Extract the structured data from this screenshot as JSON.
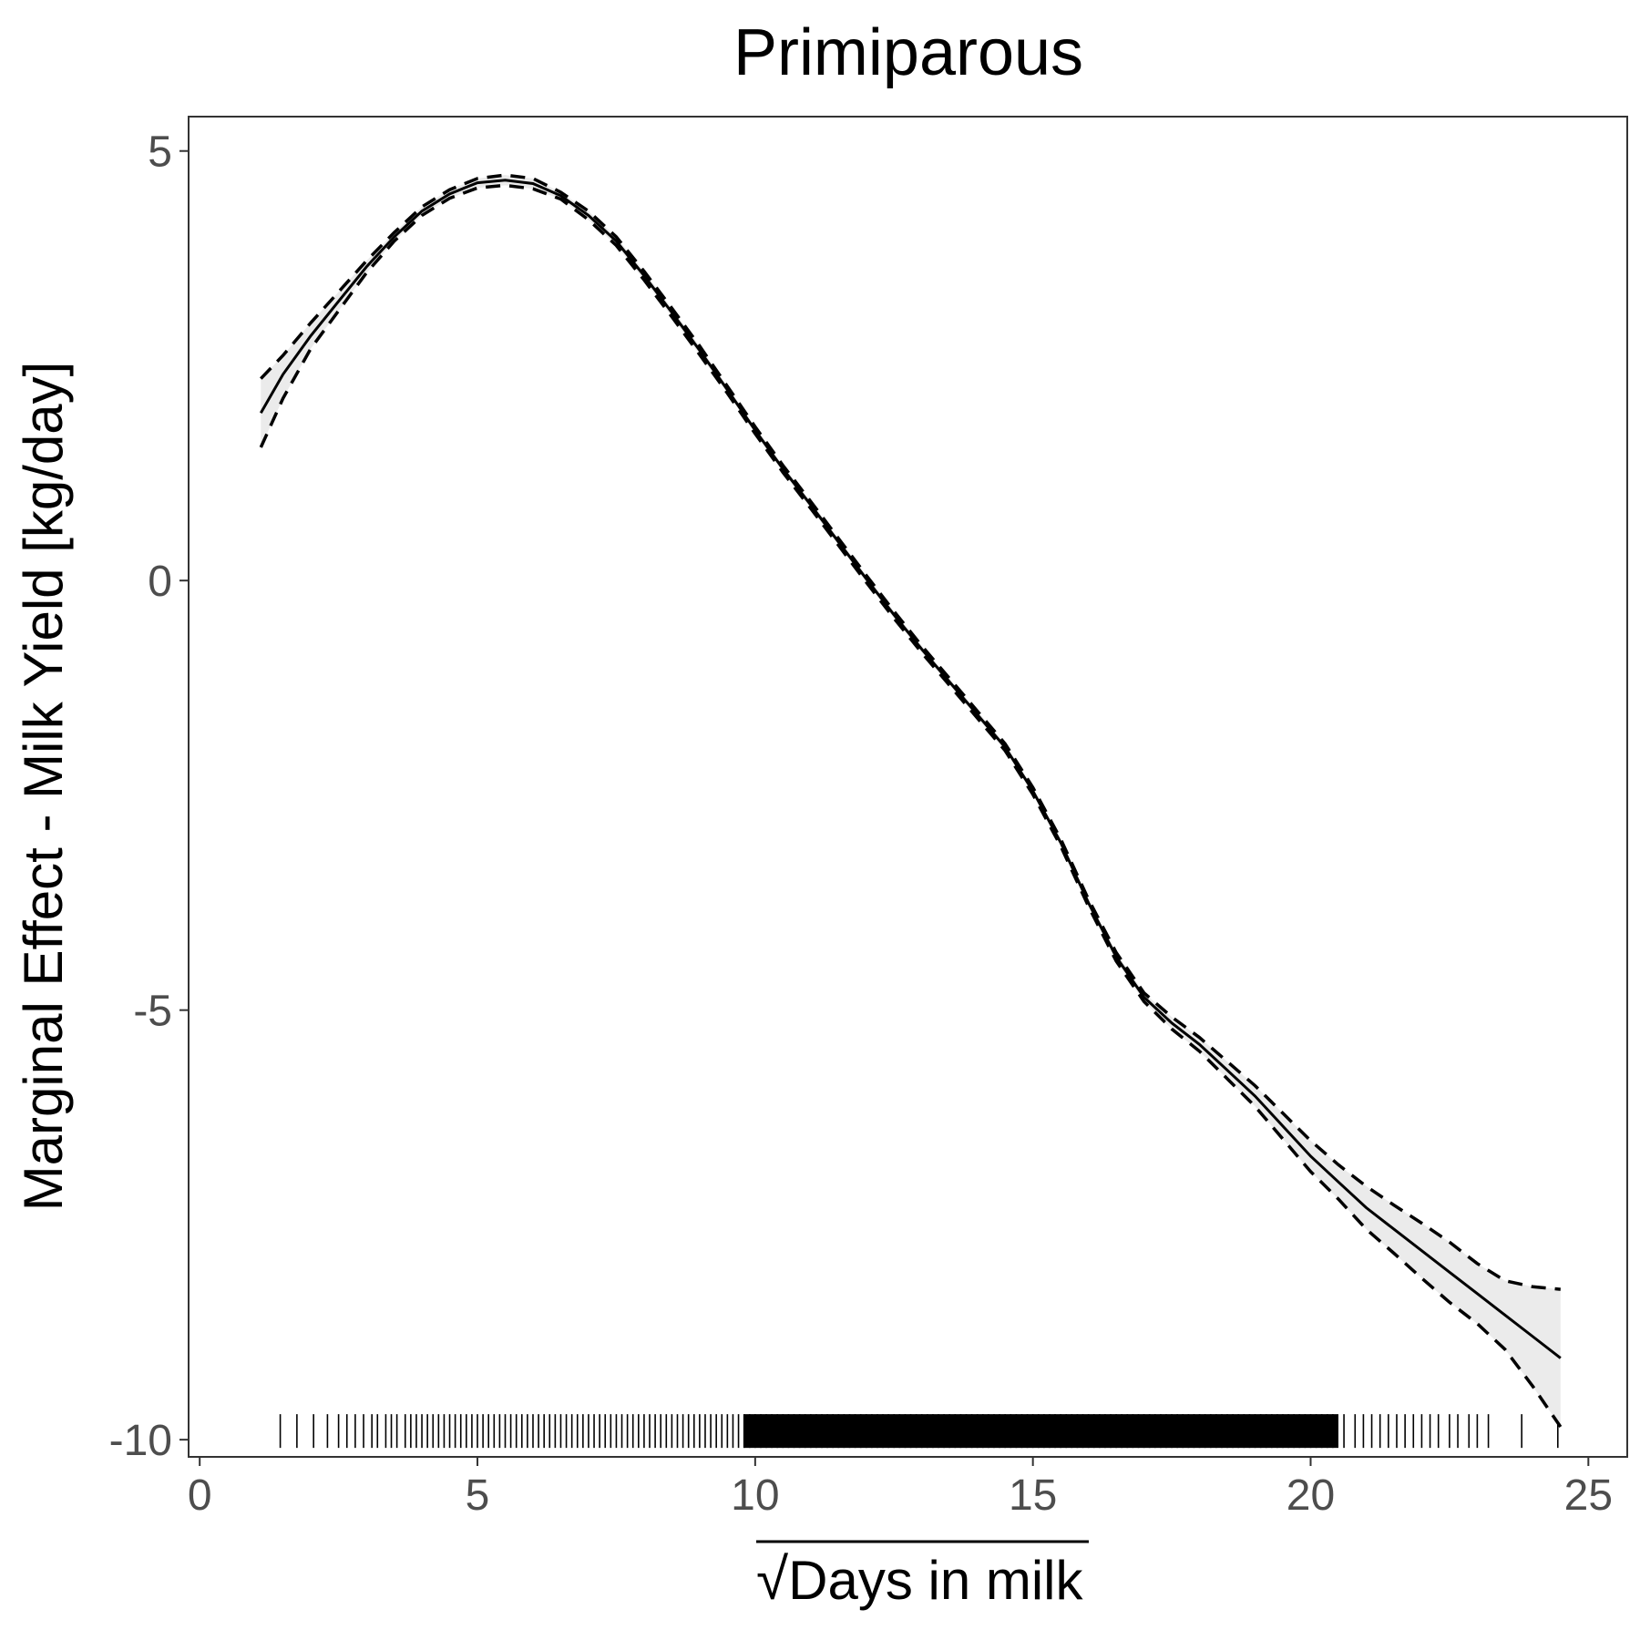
{
  "chart_data": {
    "type": "line",
    "title": "Primiparous",
    "xlabel": "Days in milk",
    "xlabel_radical": "√",
    "ylabel": "Marginal Effect - Milk Yield [kg/day]",
    "xlim": [
      -0.2,
      25.7
    ],
    "ylim": [
      -10.2,
      5.4
    ],
    "x_ticks": [
      0,
      5,
      10,
      15,
      20,
      25
    ],
    "x_tick_labels": [
      "0",
      "5",
      "10",
      "15",
      "20",
      "25"
    ],
    "y_ticks": [
      -10,
      -5,
      0,
      5
    ],
    "y_tick_labels": [
      "-10",
      "-5",
      "0",
      "5"
    ],
    "grid": false,
    "series": [
      {
        "role": "estimate",
        "x": [
          1.1,
          1.5,
          2,
          2.5,
          3,
          3.5,
          4,
          4.5,
          5,
          5.5,
          6,
          6.5,
          7,
          7.5,
          8,
          8.5,
          9,
          9.5,
          10,
          10.5,
          11,
          11.5,
          12,
          12.5,
          13,
          13.5,
          14,
          14.5,
          15,
          15.5,
          16,
          16.5,
          17,
          17.5,
          18,
          18.5,
          19,
          19.5,
          20,
          20.5,
          21,
          21.5,
          22,
          22.5,
          23,
          23.5,
          24,
          24.5
        ],
        "y": [
          1.95,
          2.4,
          2.85,
          3.25,
          3.65,
          4.0,
          4.3,
          4.5,
          4.63,
          4.66,
          4.62,
          4.48,
          4.25,
          3.95,
          3.55,
          3.12,
          2.68,
          2.22,
          1.75,
          1.3,
          0.88,
          0.45,
          0.02,
          -0.4,
          -0.8,
          -1.18,
          -1.56,
          -1.94,
          -2.45,
          -3.05,
          -3.75,
          -4.38,
          -4.85,
          -5.15,
          -5.4,
          -5.7,
          -6.0,
          -6.35,
          -6.7,
          -7.0,
          -7.3,
          -7.55,
          -7.8,
          -8.05,
          -8.3,
          -8.55,
          -8.8,
          -9.05
        ]
      },
      {
        "role": "upper",
        "x": [
          1.1,
          1.5,
          2,
          2.5,
          3,
          3.5,
          4,
          4.5,
          5,
          5.5,
          6,
          6.5,
          7,
          7.5,
          8,
          8.5,
          9,
          9.5,
          10,
          10.5,
          11,
          11.5,
          12,
          12.5,
          13,
          13.5,
          14,
          14.5,
          15,
          15.5,
          16,
          16.5,
          17,
          17.5,
          18,
          18.5,
          19,
          19.5,
          20,
          20.5,
          21,
          21.5,
          22,
          22.5,
          23,
          23.5,
          24,
          24.5
        ],
        "y": [
          2.35,
          2.62,
          3.0,
          3.36,
          3.72,
          4.05,
          4.35,
          4.55,
          4.68,
          4.72,
          4.68,
          4.52,
          4.3,
          4.0,
          3.6,
          3.17,
          2.73,
          2.26,
          1.79,
          1.34,
          0.92,
          0.49,
          0.06,
          -0.36,
          -0.76,
          -1.14,
          -1.52,
          -1.9,
          -2.41,
          -3.01,
          -3.71,
          -4.33,
          -4.8,
          -5.08,
          -5.32,
          -5.6,
          -5.88,
          -6.2,
          -6.52,
          -6.8,
          -7.05,
          -7.27,
          -7.48,
          -7.7,
          -7.95,
          -8.15,
          -8.22,
          -8.25
        ]
      },
      {
        "role": "lower",
        "x": [
          1.1,
          1.5,
          2,
          2.5,
          3,
          3.5,
          4,
          4.5,
          5,
          5.5,
          6,
          6.5,
          7,
          7.5,
          8,
          8.5,
          9,
          9.5,
          10,
          10.5,
          11,
          11.5,
          12,
          12.5,
          13,
          13.5,
          14,
          14.5,
          15,
          15.5,
          16,
          16.5,
          17,
          17.5,
          18,
          18.5,
          19,
          19.5,
          20,
          20.5,
          21,
          21.5,
          22,
          22.5,
          23,
          23.5,
          24,
          24.5
        ],
        "y": [
          1.55,
          2.12,
          2.7,
          3.14,
          3.58,
          3.95,
          4.25,
          4.45,
          4.57,
          4.6,
          4.56,
          4.44,
          4.2,
          3.9,
          3.5,
          3.07,
          2.63,
          2.18,
          1.71,
          1.26,
          0.84,
          0.41,
          -0.02,
          -0.44,
          -0.84,
          -1.22,
          -1.6,
          -1.98,
          -2.49,
          -3.09,
          -3.79,
          -4.43,
          -4.9,
          -5.22,
          -5.48,
          -5.8,
          -6.12,
          -6.5,
          -6.88,
          -7.2,
          -7.55,
          -7.83,
          -8.12,
          -8.4,
          -8.65,
          -8.95,
          -9.38,
          -9.85
        ]
      }
    ],
    "rug_x": [
      1.45,
      1.75,
      2.05,
      2.3,
      2.5,
      2.65,
      2.8,
      2.95,
      3.1,
      3.2,
      3.35,
      3.45,
      3.55,
      3.7,
      3.8,
      3.9,
      4.0,
      4.1,
      4.2,
      4.3,
      4.4,
      4.5,
      4.6,
      4.7,
      4.8,
      4.9,
      5.0,
      5.1,
      5.2,
      5.3,
      5.4,
      5.5,
      5.6,
      5.7,
      5.8,
      5.9,
      6.0,
      6.1,
      6.2,
      6.3,
      6.4,
      6.5,
      6.6,
      6.7,
      6.8,
      6.9,
      7.0,
      7.1,
      7.2,
      7.3,
      7.4,
      7.5,
      7.6,
      7.7,
      7.8,
      7.9,
      8.0,
      8.1,
      8.2,
      8.3,
      8.4,
      8.5,
      8.6,
      8.7,
      8.8,
      8.9,
      9.0,
      9.1,
      9.2,
      9.3,
      9.4,
      9.5,
      9.6,
      9.7,
      9.8,
      9.9,
      10.0,
      10.1,
      10.2,
      10.3,
      10.4,
      10.5,
      10.6,
      10.7,
      10.8,
      10.9,
      11.0,
      11.1,
      11.2,
      11.3,
      11.4,
      11.5,
      11.6,
      11.7,
      11.8,
      11.9,
      12.0,
      12.1,
      12.2,
      12.3,
      12.4,
      12.5,
      12.6,
      12.7,
      12.8,
      12.9,
      13.0,
      13.1,
      13.2,
      13.3,
      13.4,
      13.5,
      13.6,
      13.7,
      13.8,
      13.9,
      14.0,
      14.1,
      14.2,
      14.3,
      14.4,
      14.5,
      14.6,
      14.7,
      14.8,
      14.9,
      15.0,
      15.1,
      15.2,
      15.3,
      15.4,
      15.5,
      15.6,
      15.7,
      15.8,
      15.9,
      16.0,
      16.1,
      16.2,
      16.3,
      16.4,
      16.5,
      16.6,
      16.7,
      16.8,
      16.9,
      17.0,
      17.1,
      17.2,
      17.3,
      17.4,
      17.5,
      17.6,
      17.7,
      17.8,
      17.9,
      18.0,
      18.1,
      18.2,
      18.3,
      18.4,
      18.5,
      18.6,
      18.7,
      18.8,
      18.9,
      19.0,
      19.1,
      19.2,
      19.3,
      19.4,
      19.5,
      19.6,
      19.7,
      19.8,
      19.9,
      20.0,
      20.1,
      20.2,
      20.3,
      20.4,
      20.6,
      20.8,
      20.95,
      21.1,
      21.25,
      21.4,
      21.55,
      21.7,
      21.85,
      22.0,
      22.15,
      22.3,
      22.5,
      22.65,
      22.85,
      23.0,
      23.2,
      23.8,
      24.45
    ]
  }
}
